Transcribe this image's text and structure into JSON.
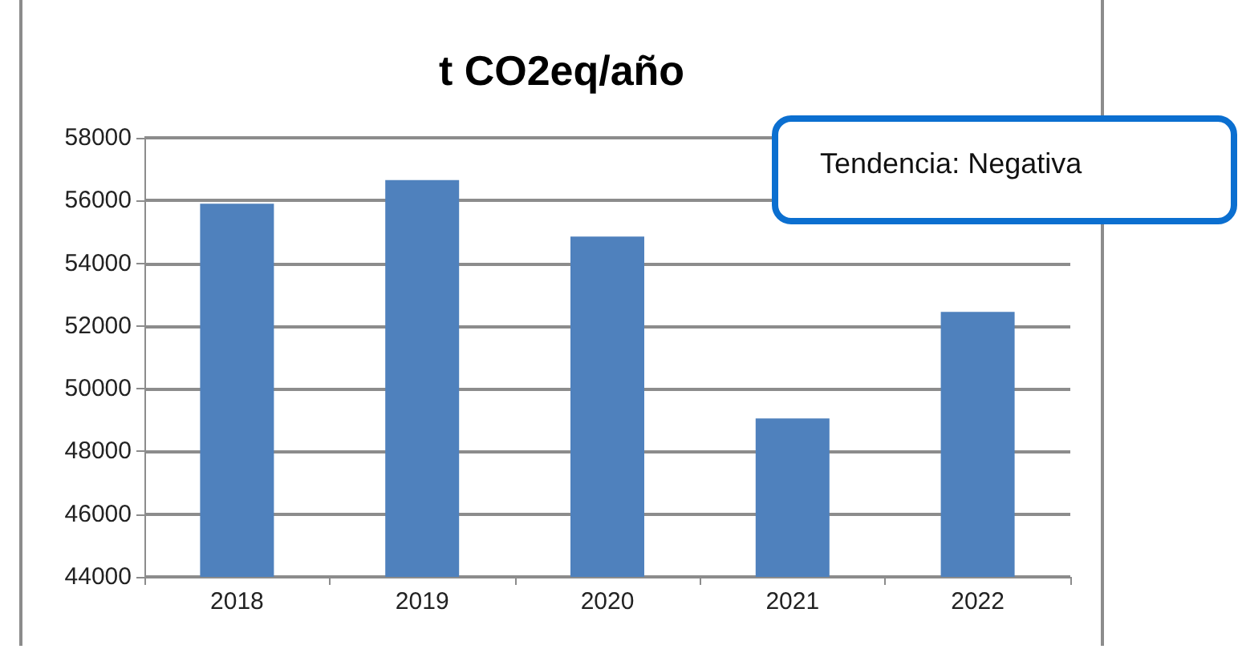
{
  "chart_data": {
    "type": "bar",
    "title": "t CO2eq/año",
    "categories": [
      "2018",
      "2019",
      "2020",
      "2021",
      "2022"
    ],
    "values": [
      55900,
      56650,
      54850,
      49050,
      52450
    ],
    "color": "#4f81bd",
    "ylim": [
      44000,
      58000
    ],
    "yticks": [
      44000,
      46000,
      48000,
      50000,
      52000,
      54000,
      56000,
      58000
    ],
    "grid": "y",
    "annotations": [
      "Tendencia: Negativa"
    ]
  }
}
